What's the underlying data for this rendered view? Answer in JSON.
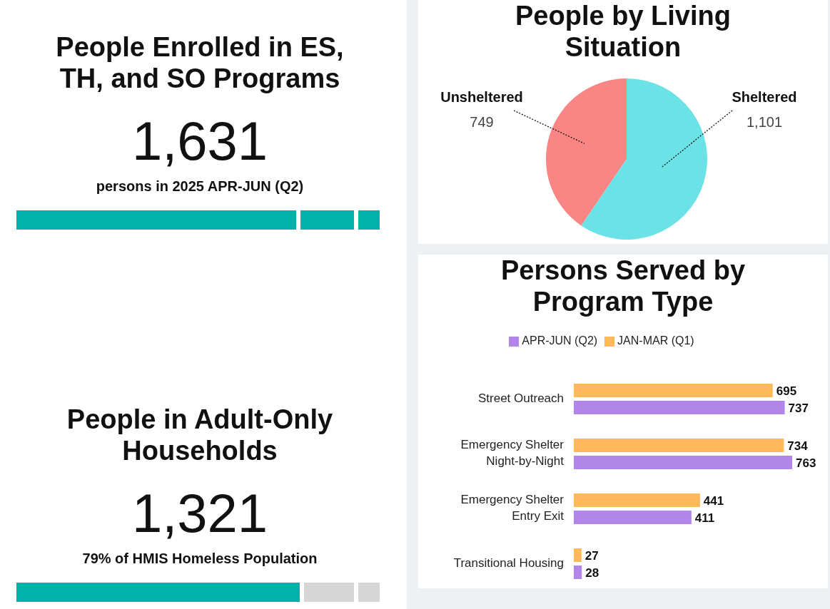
{
  "chart_data": [
    {
      "type": "other",
      "title": "People Enrolled in ES, TH, and SO Programs",
      "annotations": [
        "1,631",
        "persons in 2025 APR-JUN (Q2)"
      ]
    },
    {
      "type": "pie",
      "title": "People by Living Situation",
      "categories": [
        "Unsheltered",
        "Sheltered"
      ],
      "values": [
        749,
        1101
      ],
      "value_labels": [
        "749",
        "1,101"
      ],
      "colors": [
        "#f98684",
        "#6ae2e6"
      ]
    },
    {
      "type": "bar",
      "orientation": "horizontal",
      "stacked": false,
      "legend": "top",
      "data_labels": true,
      "tick_labels": "y",
      "title": "Persons Served by Program Type",
      "categories": [
        "Street Outreach",
        "Emergency Shelter Night-by-Night",
        "Emergency Shelter Entry Exit",
        "Transitional Housing"
      ],
      "series": [
        {
          "name": "JAN-MAR (Q1)",
          "color": "#ffb95a",
          "values": [
            695,
            734,
            441,
            27
          ]
        },
        {
          "name": "APR-JUN (Q2)",
          "color": "#b285e8",
          "values": [
            737,
            763,
            411,
            28
          ]
        }
      ]
    },
    {
      "type": "other",
      "title": "People in Adult-Only Households",
      "annotations": [
        "1,321",
        "79% of HMIS Homeless Population"
      ]
    }
  ]
}
